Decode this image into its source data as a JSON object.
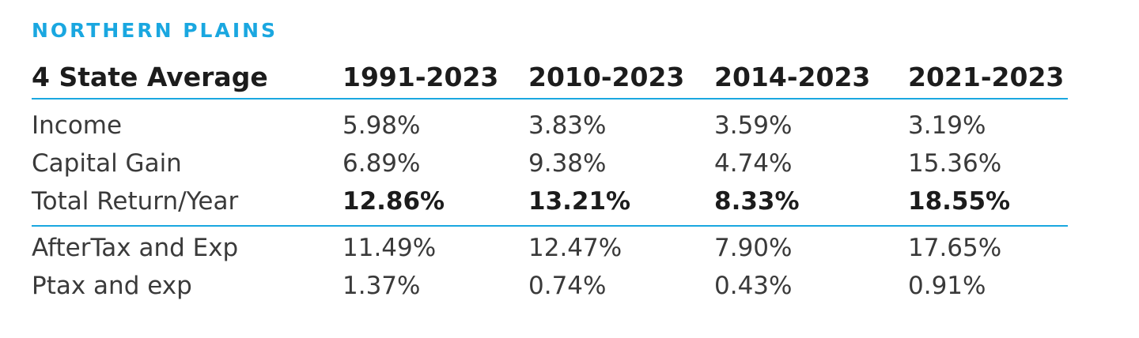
{
  "region": "NORTHERN PLAINS",
  "table": {
    "headers": [
      "4 State Average",
      "1991-2023",
      "2010-2023",
      "2014-2023",
      "2021-2023"
    ],
    "rows": [
      {
        "label": "Income",
        "values": [
          "5.98%",
          "3.83%",
          "3.59%",
          "3.19%"
        ]
      },
      {
        "label": "Capital Gain",
        "values": [
          "6.89%",
          "9.38%",
          "4.74%",
          "15.36%"
        ]
      },
      {
        "label": "Total Return/Year",
        "values": [
          "12.86%",
          "13.21%",
          "8.33%",
          "18.55%"
        ]
      },
      {
        "label": "AfterTax and Exp",
        "values": [
          "11.49%",
          "12.47%",
          "7.90%",
          "17.65%"
        ]
      },
      {
        "label": "Ptax and exp",
        "values": [
          "1.37%",
          "0.74%",
          "0.43%",
          "0.91%"
        ]
      }
    ]
  },
  "colors": {
    "accent": "#1aa7e0",
    "text": "#3a3a3a",
    "heading": "#1c1c1c"
  }
}
